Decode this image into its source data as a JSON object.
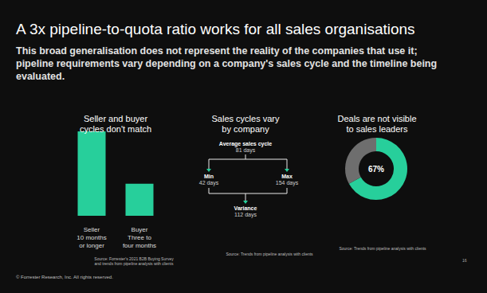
{
  "slide": {
    "title": "A 3x pipeline-to-quota ratio works for all sales organisations",
    "subtitle": "This broad generalisation does not represent the reality of the companies that use it; pipeline requirements vary depending on a company's sales cycle and the timeline being evaluated.",
    "footer": "© Forrester Research, Inc. All rights reserved.",
    "page_number": "16"
  },
  "chart_data": [
    {
      "type": "bar",
      "title": "Seller and buyer\ncycles don't match",
      "categories": [
        "Seller\n10 months\nor longer",
        "Buyer\nThree to\nfour months"
      ],
      "values": [
        10,
        3.8
      ],
      "color": "#27cf9b",
      "ylim": [
        0,
        10
      ],
      "grid": false,
      "tick_labels": "x",
      "source": "Source: Forrester's 2021 B2B Buying Survey\nand trends from pipeline analysis with clients"
    },
    {
      "type": "pie",
      "title": "Deals are not visible\nto sales leaders",
      "values": [
        67,
        33
      ],
      "value_labels": [
        "67%",
        null
      ],
      "colors": [
        "#27cf9b",
        "#6e6e6e"
      ],
      "source": "Source: Trends from pipeline analysis with clients"
    }
  ],
  "diagram": {
    "title": "Sales cycles vary\nby company",
    "average": {
      "label": "Average sales cycle",
      "value": "81 days"
    },
    "min": {
      "label": "Min",
      "value": "42 days"
    },
    "max": {
      "label": "Max",
      "value": "154 days"
    },
    "variance": {
      "label": "Variance",
      "value": "112 days"
    },
    "source": "Source: Trends from pipeline analysis with clients"
  }
}
